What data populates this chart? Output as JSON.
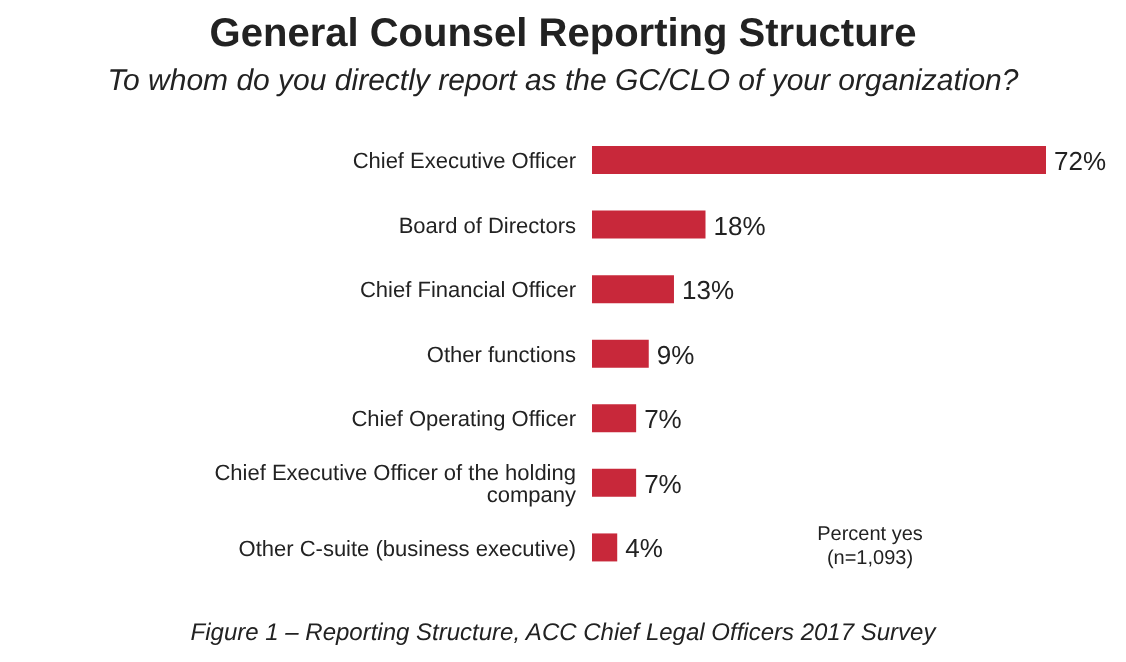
{
  "chart_data": {
    "type": "bar",
    "orientation": "horizontal",
    "title": "General Counsel Reporting Structure",
    "subtitle": "To whom do you directly report as the GC/CLO of your organization?",
    "categories": [
      "Chief Executive Officer",
      "Board of Directors",
      "Chief Financial Officer",
      "Other functions",
      "Chief Operating Officer",
      "Chief Executive Officer of the holding company",
      "Other C-suite (business executive)"
    ],
    "values": [
      72,
      18,
      13,
      9,
      7,
      7,
      4
    ],
    "value_labels": [
      "72%",
      "18%",
      "13%",
      "9%",
      "7%",
      "7%",
      "4%"
    ],
    "color": "#c8283a",
    "tick_labels": "y",
    "grid": false,
    "legend": false,
    "annotations": [
      "Percent yes",
      "(n=1,093)",
      "Figure 1 – Reporting Structure, ACC Chief Legal Officers 2017 Survey"
    ]
  }
}
